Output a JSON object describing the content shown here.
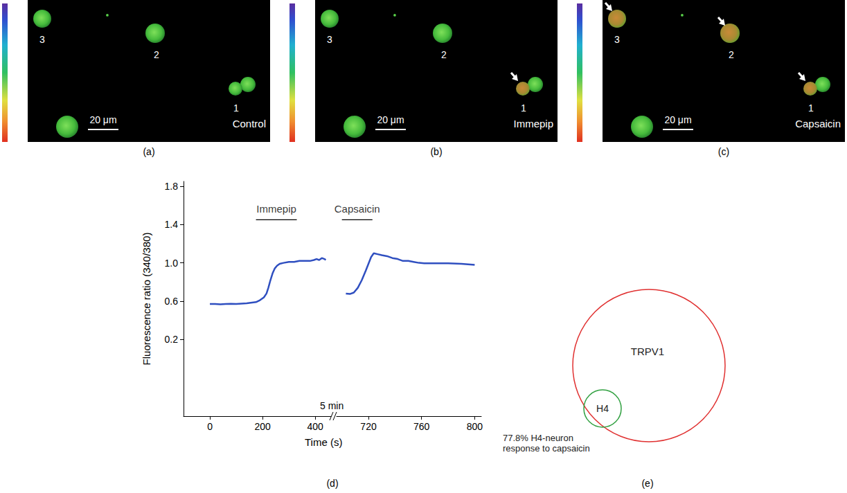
{
  "images": [
    {
      "caption": "(a)",
      "condition": "Control",
      "scale_bar": "20 μm",
      "cells": [
        {
          "label": "3",
          "responding": false
        },
        {
          "label": "2",
          "responding": false
        },
        {
          "label": "1",
          "responding": false
        }
      ]
    },
    {
      "caption": "(b)",
      "condition": "Immepip",
      "scale_bar": "20 μm",
      "cells": [
        {
          "label": "3",
          "responding": false
        },
        {
          "label": "2",
          "responding": false
        },
        {
          "label": "1",
          "responding": true
        }
      ]
    },
    {
      "caption": "(c)",
      "condition": "Capsaicin",
      "scale_bar": "20 μm",
      "cells": [
        {
          "label": "3",
          "responding": true
        },
        {
          "label": "2",
          "responding": true
        },
        {
          "label": "1",
          "responding": true
        }
      ]
    }
  ],
  "chart_data": {
    "type": "line",
    "caption": "(d)",
    "xlabel": "Time (s)",
    "ylabel": "Fluorescence ratio (340/380)",
    "ylim": [
      -0.6,
      1.85
    ],
    "yticks": [
      0.2,
      0.6,
      {
        "value": 1,
        "label": "1.0"
      },
      1.4,
      1.8
    ],
    "grid": false,
    "color": "#2f4fc0",
    "break_label": "5 min",
    "x_segments": [
      {
        "xlim": [
          -100,
          460
        ],
        "xticks": [
          0,
          200,
          400
        ],
        "x": [
          0,
          20,
          40,
          60,
          80,
          100,
          120,
          140,
          160,
          175,
          190,
          205,
          215,
          222,
          230,
          238,
          246,
          255,
          265,
          280,
          300,
          320,
          340,
          360,
          380,
          395,
          405,
          415,
          425,
          435,
          440
        ],
        "values": [
          0.57,
          0.57,
          0.568,
          0.57,
          0.572,
          0.57,
          0.575,
          0.578,
          0.585,
          0.59,
          0.61,
          0.64,
          0.68,
          0.74,
          0.82,
          0.89,
          0.94,
          0.97,
          0.99,
          1.0,
          1.01,
          1.01,
          1.02,
          1.02,
          1.02,
          1.03,
          1.04,
          1.03,
          1.05,
          1.04,
          1.03
        ]
      },
      {
        "xlim": [
          696,
          805
        ],
        "xticks": [
          720,
          760,
          800
        ],
        "x": [
          703,
          706,
          709,
          712,
          715,
          718,
          720,
          722,
          724,
          727,
          730,
          734,
          738,
          742,
          746,
          750,
          754,
          758,
          762,
          770,
          780,
          790,
          800
        ],
        "values": [
          0.68,
          0.675,
          0.69,
          0.74,
          0.82,
          0.92,
          0.99,
          1.06,
          1.1,
          1.09,
          1.08,
          1.07,
          1.05,
          1.04,
          1.02,
          1.02,
          1.01,
          1.0,
          0.995,
          0.995,
          0.995,
          0.99,
          0.98
        ]
      }
    ],
    "annotations": [
      {
        "text": "Immepip",
        "x": [
          175,
          330
        ],
        "y": 1.45
      },
      {
        "text": "Capsaicin",
        "x": [
          700,
          723
        ],
        "y": 1.45
      }
    ]
  },
  "venn": {
    "caption": "(e)",
    "sets": [
      {
        "label": "TRPV1",
        "color": "#e03030"
      },
      {
        "label": "H4",
        "color": "#30a040"
      }
    ],
    "note": [
      "77.8% H4-neuron",
      "response to capsaicin"
    ]
  }
}
